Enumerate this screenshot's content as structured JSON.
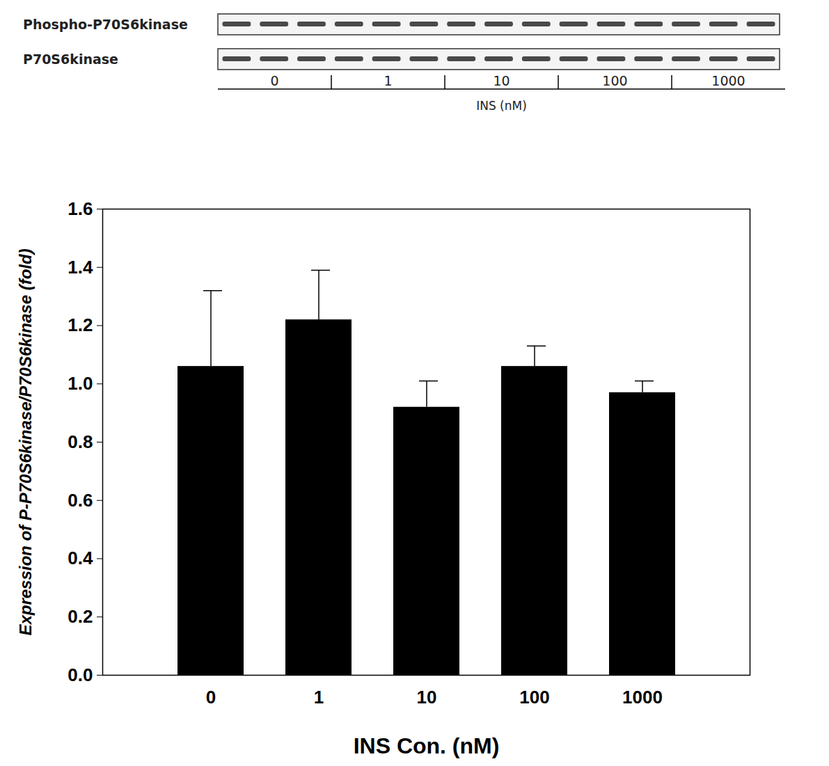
{
  "blot": {
    "rows": [
      "Phospho-P70S6kinase",
      "P70S6kinase"
    ],
    "lanes": [
      "0",
      "1",
      "10",
      "100",
      "1000"
    ],
    "xlabel": "INS (nM)"
  },
  "chart_data": {
    "type": "bar",
    "categories": [
      "0",
      "1",
      "10",
      "100",
      "1000"
    ],
    "values": [
      1.06,
      1.22,
      0.92,
      1.06,
      0.97
    ],
    "errors": [
      0.26,
      0.17,
      0.09,
      0.07,
      0.04
    ],
    "color": "#000000",
    "xlabel": "INS Con. (nM)",
    "ylabel": "Expression of P-P70S6kinase/P70S6kinase (fold)",
    "ylim": [
      0,
      1.6
    ],
    "yticks": [
      {
        "value": 0,
        "label": "0.0"
      },
      {
        "value": 0.2,
        "label": "0.2"
      },
      {
        "value": 0.4,
        "label": "0.4"
      },
      {
        "value": 0.6,
        "label": "0.6"
      },
      {
        "value": 0.8,
        "label": "0.8"
      },
      {
        "value": 1.0,
        "label": "1.0"
      },
      {
        "value": 1.2,
        "label": "1.2"
      },
      {
        "value": 1.4,
        "label": "1.4"
      },
      {
        "value": 1.6,
        "label": "1.6"
      }
    ],
    "grid": false
  }
}
